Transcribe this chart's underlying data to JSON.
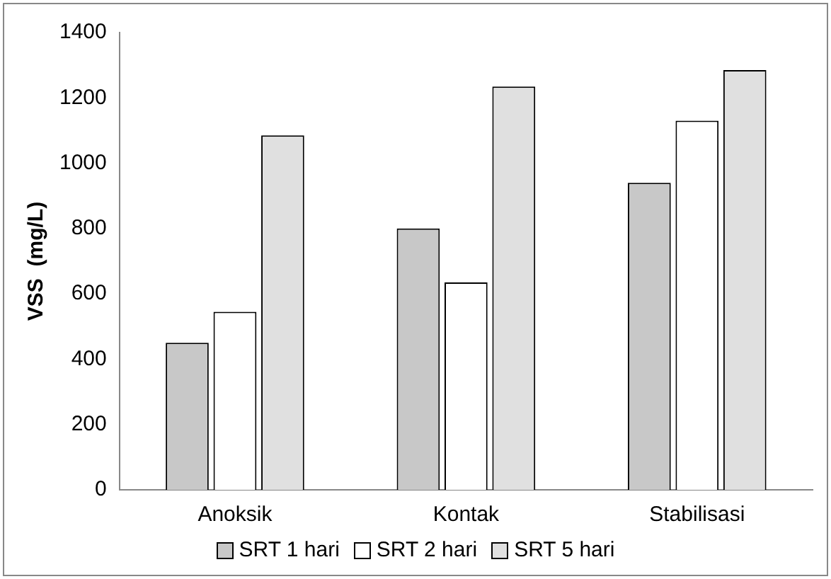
{
  "chart_data": {
    "type": "bar",
    "ylabel": "VSS  (mg/L)",
    "categories": [
      "Anoksik",
      "Kontak",
      "Stabilisasi"
    ],
    "series": [
      {
        "name": "SRT 1 hari",
        "color": "#c8c8c8",
        "values": [
          450,
          800,
          940
        ]
      },
      {
        "name": "SRT 2 hari",
        "color": "#ffffff",
        "values": [
          545,
          635,
          1130
        ]
      },
      {
        "name": "SRT 5 hari",
        "color": "#e0e0e0",
        "values": [
          1085,
          1235,
          1285
        ]
      }
    ],
    "ylim": [
      0,
      1400
    ],
    "yticks": [
      0,
      200,
      400,
      600,
      800,
      1000,
      1200,
      1400
    ],
    "grid": false,
    "legend": "bottom"
  }
}
